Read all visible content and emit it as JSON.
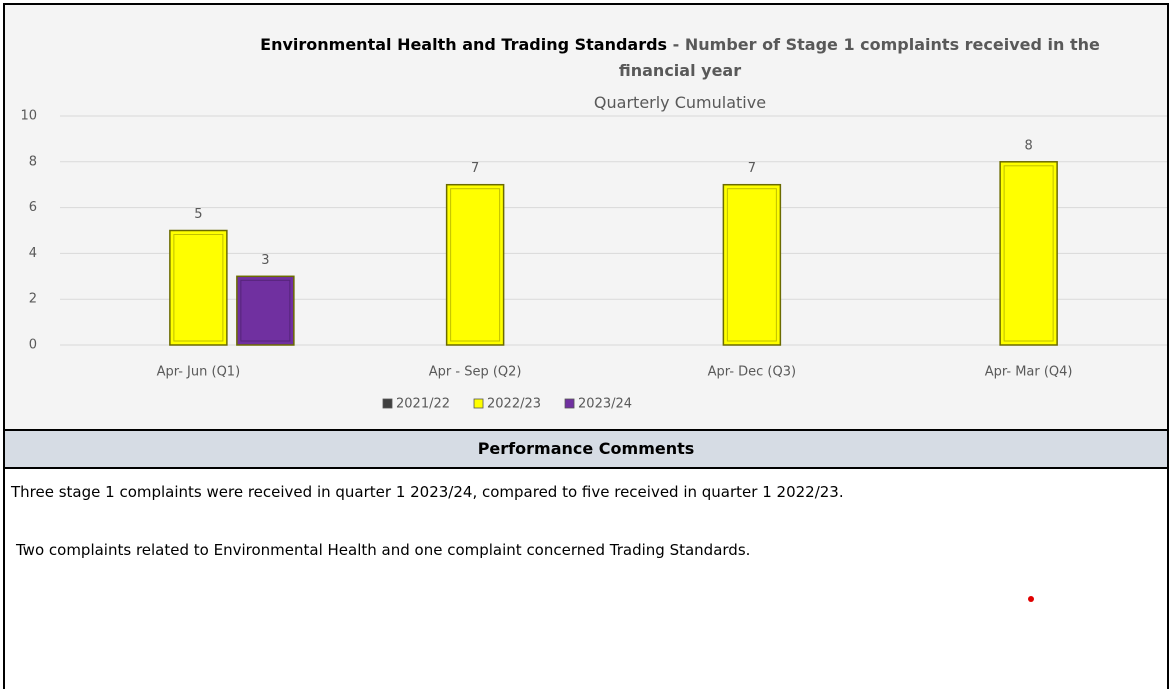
{
  "chart_data": {
    "type": "bar",
    "title": "Environmental Health and Trading Standards",
    "title_detail": "- Number of Stage 1 complaints received in the financial year",
    "subtitle": "Quarterly Cumulative",
    "categories": [
      "Apr- Jun  (Q1)",
      "Apr - Sep  (Q2)",
      "Apr- Dec  (Q3)",
      "Apr- Mar  (Q4)"
    ],
    "series": [
      {
        "name": "2021/22",
        "color": "#404040",
        "values": [
          null,
          null,
          null,
          null
        ]
      },
      {
        "name": "2022/23",
        "color": "#ffff00",
        "values": [
          5,
          7,
          7,
          8
        ]
      },
      {
        "name": "2023/24",
        "color": "#7030a0",
        "values": [
          3,
          null,
          null,
          null
        ]
      }
    ],
    "ylim": [
      0,
      10
    ],
    "yticks": [
      0,
      2,
      4,
      6,
      8,
      10
    ],
    "grid": true,
    "legend": "bottom"
  },
  "comments": {
    "heading": "Performance Comments",
    "paragraphs": [
      "Three stage 1 complaints were received in quarter 1 2023/24, compared to five received in quarter 1 2022/23.",
      "Two complaints related to Environmental Health and one complaint concerned Trading Standards."
    ]
  }
}
